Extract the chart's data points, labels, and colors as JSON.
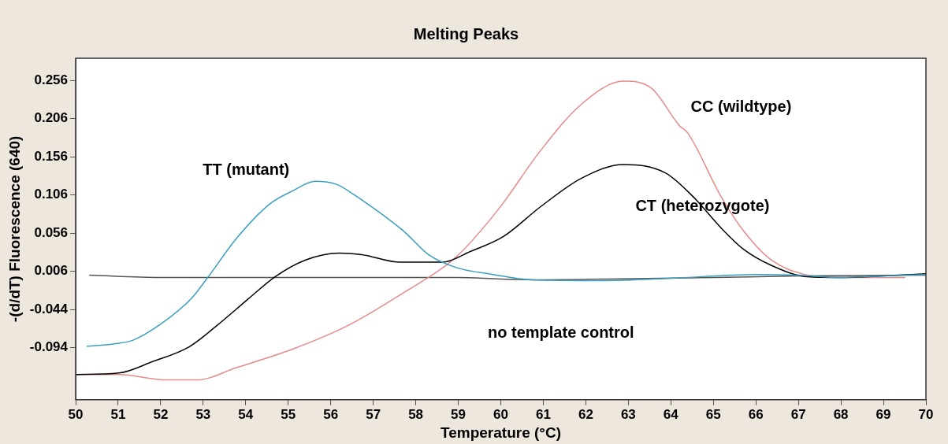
{
  "chart_data": {
    "type": "line",
    "title": "Melting Peaks",
    "xlabel": "Temperature (°C)",
    "ylabel": "-(d/dT) Fluorescence (640)",
    "xlim": [
      50,
      70
    ],
    "xticks": [
      50,
      51,
      52,
      53,
      54,
      55,
      56,
      57,
      58,
      59,
      60,
      61,
      62,
      63,
      64,
      65,
      66,
      67,
      68,
      69,
      70
    ],
    "ylim": [
      -0.162,
      0.285
    ],
    "yticks": [
      -0.094,
      -0.044,
      0.006,
      0.056,
      0.106,
      0.156,
      0.206,
      0.256
    ],
    "grid": false,
    "legend": false,
    "marker": "none",
    "line_style": "solid",
    "series": [
      {
        "name": "TT (mutant)",
        "color": "#3a9fc0",
        "x": [
          50.27,
          50.89,
          51.35,
          52.0,
          52.73,
          53.12,
          53.78,
          54.56,
          55.09,
          55.64,
          56.14,
          56.53,
          57.71,
          58.3,
          58.95,
          59.81,
          60.72,
          62.43,
          64.0,
          66.0,
          67.0,
          68.0,
          69.0,
          70.0
        ],
        "values": [
          -0.092,
          -0.089,
          -0.084,
          -0.063,
          -0.029,
          -0.001,
          0.049,
          0.094,
          0.111,
          0.124,
          0.12,
          0.107,
          0.059,
          0.028,
          0.011,
          0.002,
          -0.005,
          -0.006,
          -0.003,
          0.002,
          0.001,
          -0.002,
          0.0,
          0.002
        ]
      },
      {
        "name": "CT (heterozygote)",
        "color": "#000000",
        "x": [
          50.0,
          51.02,
          51.81,
          52.66,
          53.32,
          54.04,
          54.69,
          55.41,
          56.2,
          56.73,
          57.64,
          58.63,
          59.28,
          60.07,
          60.92,
          61.9,
          62.89,
          63.87,
          64.52,
          65.18,
          65.71,
          66.36,
          67.21,
          68.0,
          68.98,
          70.0
        ],
        "values": [
          -0.129,
          -0.127,
          -0.112,
          -0.093,
          -0.065,
          -0.031,
          -0.001,
          0.021,
          0.03,
          0.028,
          0.018,
          0.018,
          0.032,
          0.052,
          0.09,
          0.128,
          0.146,
          0.135,
          0.104,
          0.063,
          0.035,
          0.014,
          -0.001,
          -0.002,
          0.0,
          0.003
        ]
      },
      {
        "name": "CC (wildtype)",
        "color": "#e88a8a",
        "x": [
          50.0,
          51.02,
          52.14,
          52.86,
          53.78,
          55.09,
          56.4,
          57.71,
          58.95,
          59.94,
          60.92,
          61.9,
          62.89,
          63.54,
          64.2,
          64.4,
          65.18,
          65.71,
          66.36,
          67.15,
          67.94,
          69.5
        ],
        "values": [
          -0.129,
          -0.129,
          -0.136,
          -0.136,
          -0.12,
          -0.096,
          -0.065,
          -0.022,
          0.025,
          0.087,
          0.163,
          0.225,
          0.255,
          0.246,
          0.197,
          0.187,
          0.104,
          0.059,
          0.021,
          0.002,
          -0.002,
          -0.002
        ]
      },
      {
        "name": "no template control",
        "color": "#555555",
        "x": [
          50.33,
          52.0,
          59.0,
          60.0,
          61.0,
          62.5,
          65.0,
          67.0,
          70.0
        ],
        "values": [
          0.001,
          -0.002,
          -0.002,
          -0.004,
          -0.005,
          -0.004,
          -0.002,
          0.0,
          0.001
        ]
      }
    ]
  }
}
